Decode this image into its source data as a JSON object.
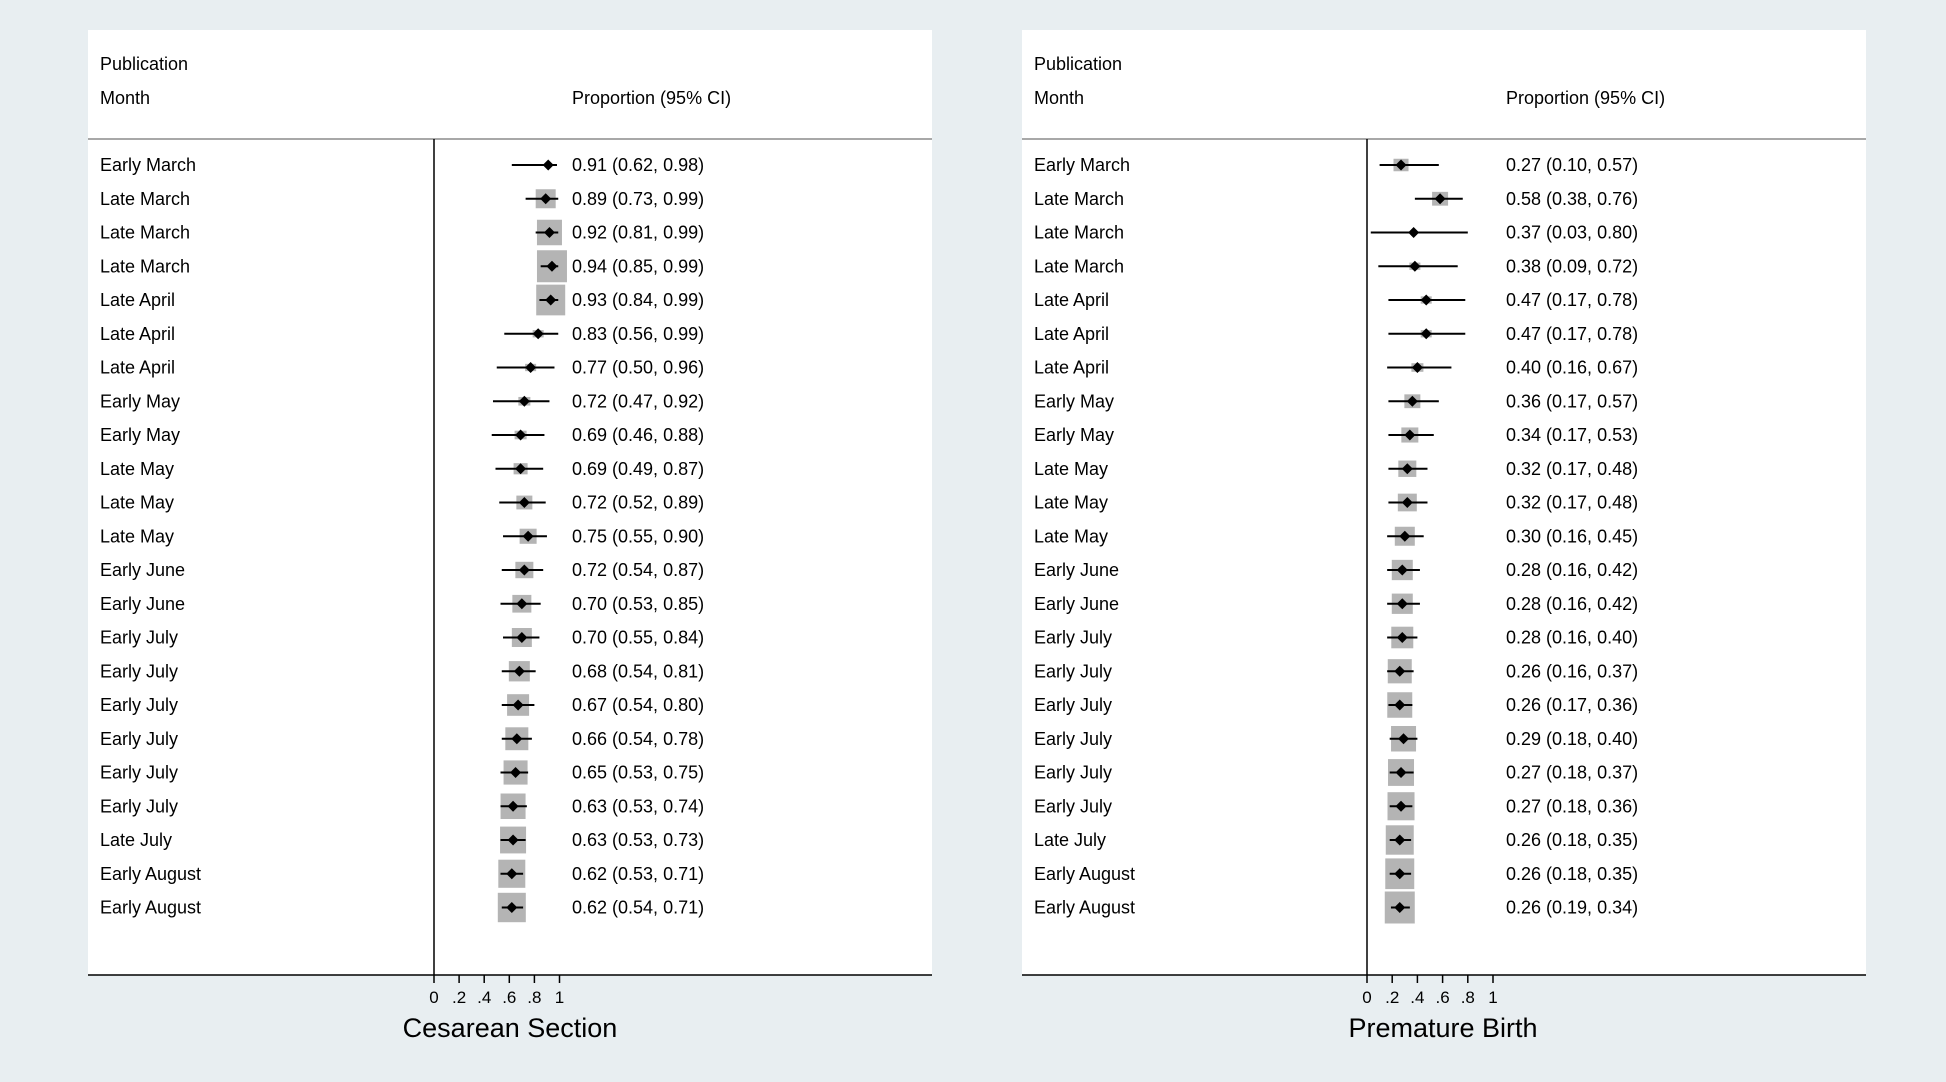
{
  "chart_data": [
    {
      "type": "forest",
      "header_label_line1": "Publication",
      "header_label_line2": "Month",
      "header_estimate": "Proportion (95% CI)",
      "xlabel": "Cesarean Section",
      "xlim": [
        0,
        1
      ],
      "xticks": [
        "0",
        ".2",
        ".4",
        ".6",
        ".8",
        "1"
      ],
      "tick_values": [
        0,
        0.2,
        0.4,
        0.6,
        0.8,
        1
      ],
      "rows": [
        {
          "label": "Early March",
          "est": 0.91,
          "lo": 0.62,
          "hi": 0.98,
          "text": "0.91 (0.62, 0.98)",
          "weight": 0.0
        },
        {
          "label": "Late March",
          "est": 0.89,
          "lo": 0.73,
          "hi": 0.99,
          "text": "0.89 (0.73, 0.99)",
          "weight": 0.5
        },
        {
          "label": "Late March",
          "est": 0.92,
          "lo": 0.81,
          "hi": 0.99,
          "text": "0.92 (0.81, 0.99)",
          "weight": 0.75
        },
        {
          "label": "Late March",
          "est": 0.94,
          "lo": 0.85,
          "hi": 0.99,
          "text": "0.94 (0.85, 0.99)",
          "weight": 1.0
        },
        {
          "label": "Late April",
          "est": 0.93,
          "lo": 0.84,
          "hi": 0.99,
          "text": "0.93 (0.84, 0.99)",
          "weight": 0.95
        },
        {
          "label": "Late April",
          "est": 0.83,
          "lo": 0.56,
          "hi": 0.99,
          "text": "0.83 (0.56, 0.99)",
          "weight": 0.05
        },
        {
          "label": "Late April",
          "est": 0.77,
          "lo": 0.5,
          "hi": 0.96,
          "text": "0.77 (0.50, 0.96)",
          "weight": 0.05
        },
        {
          "label": "Early May",
          "est": 0.72,
          "lo": 0.47,
          "hi": 0.92,
          "text": "0.72 (0.47, 0.92)",
          "weight": 0.1
        },
        {
          "label": "Early May",
          "est": 0.69,
          "lo": 0.46,
          "hi": 0.88,
          "text": "0.69 (0.46, 0.88)",
          "weight": 0.1
        },
        {
          "label": "Late May",
          "est": 0.69,
          "lo": 0.49,
          "hi": 0.87,
          "text": "0.69 (0.49, 0.87)",
          "weight": 0.2
        },
        {
          "label": "Late May",
          "est": 0.72,
          "lo": 0.52,
          "hi": 0.89,
          "text": "0.72 (0.52, 0.89)",
          "weight": 0.3
        },
        {
          "label": "Late May",
          "est": 0.75,
          "lo": 0.55,
          "hi": 0.9,
          "text": "0.75 (0.55, 0.90)",
          "weight": 0.35
        },
        {
          "label": "Early June",
          "est": 0.72,
          "lo": 0.54,
          "hi": 0.87,
          "text": "0.72 (0.54, 0.87)",
          "weight": 0.4
        },
        {
          "label": "Early June",
          "est": 0.7,
          "lo": 0.53,
          "hi": 0.85,
          "text": "0.70 (0.53, 0.85)",
          "weight": 0.45
        },
        {
          "label": "Early July",
          "est": 0.7,
          "lo": 0.55,
          "hi": 0.84,
          "text": "0.70 (0.55, 0.84)",
          "weight": 0.5
        },
        {
          "label": "Early July",
          "est": 0.68,
          "lo": 0.54,
          "hi": 0.81,
          "text": "0.68 (0.54, 0.81)",
          "weight": 0.55
        },
        {
          "label": "Early July",
          "est": 0.67,
          "lo": 0.54,
          "hi": 0.8,
          "text": "0.67 (0.54, 0.80)",
          "weight": 0.6
        },
        {
          "label": "Early July",
          "est": 0.66,
          "lo": 0.54,
          "hi": 0.78,
          "text": "0.66 (0.54, 0.78)",
          "weight": 0.65
        },
        {
          "label": "Early July",
          "est": 0.65,
          "lo": 0.53,
          "hi": 0.75,
          "text": "0.65 (0.53, 0.75)",
          "weight": 0.7
        },
        {
          "label": "Early July",
          "est": 0.63,
          "lo": 0.53,
          "hi": 0.74,
          "text": "0.63 (0.53, 0.74)",
          "weight": 0.75
        },
        {
          "label": "Late July",
          "est": 0.63,
          "lo": 0.53,
          "hi": 0.73,
          "text": "0.63 (0.53, 0.73)",
          "weight": 0.8
        },
        {
          "label": "Early August",
          "est": 0.62,
          "lo": 0.53,
          "hi": 0.71,
          "text": "0.62 (0.53, 0.71)",
          "weight": 0.85
        },
        {
          "label": "Early August",
          "est": 0.62,
          "lo": 0.54,
          "hi": 0.71,
          "text": "0.62 (0.54, 0.71)",
          "weight": 0.9
        }
      ]
    },
    {
      "type": "forest",
      "header_label_line1": "Publication",
      "header_label_line2": "Month",
      "header_estimate": "Proportion (95% CI)",
      "xlabel": "Premature Birth",
      "xlim": [
        0,
        1
      ],
      "xticks": [
        "0",
        ".2",
        ".4",
        ".6",
        ".8",
        "1"
      ],
      "tick_values": [
        0,
        0.2,
        0.4,
        0.6,
        0.8,
        1
      ],
      "rows": [
        {
          "label": "Early March",
          "est": 0.27,
          "lo": 0.1,
          "hi": 0.57,
          "text": "0.27 (0.10, 0.57)",
          "weight": 0.25
        },
        {
          "label": "Late March",
          "est": 0.58,
          "lo": 0.38,
          "hi": 0.76,
          "text": "0.58 (0.38, 0.76)",
          "weight": 0.3
        },
        {
          "label": "Late March",
          "est": 0.37,
          "lo": 0.03,
          "hi": 0.8,
          "text": "0.37 (0.03, 0.80)",
          "weight": 0.0
        },
        {
          "label": "Late March",
          "est": 0.38,
          "lo": 0.09,
          "hi": 0.72,
          "text": "0.38 (0.09, 0.72)",
          "weight": 0.05
        },
        {
          "label": "Late April",
          "est": 0.47,
          "lo": 0.17,
          "hi": 0.78,
          "text": "0.47 (0.17, 0.78)",
          "weight": 0.05
        },
        {
          "label": "Late April",
          "est": 0.47,
          "lo": 0.17,
          "hi": 0.78,
          "text": "0.47 (0.17, 0.78)",
          "weight": 0.05
        },
        {
          "label": "Late April",
          "est": 0.4,
          "lo": 0.16,
          "hi": 0.67,
          "text": "0.40 (0.16, 0.67)",
          "weight": 0.1
        },
        {
          "label": "Early May",
          "est": 0.36,
          "lo": 0.17,
          "hi": 0.57,
          "text": "0.36 (0.17, 0.57)",
          "weight": 0.3
        },
        {
          "label": "Early May",
          "est": 0.34,
          "lo": 0.17,
          "hi": 0.53,
          "text": "0.34 (0.17, 0.53)",
          "weight": 0.35
        },
        {
          "label": "Late May",
          "est": 0.32,
          "lo": 0.17,
          "hi": 0.48,
          "text": "0.32 (0.17, 0.48)",
          "weight": 0.4
        },
        {
          "label": "Late May",
          "est": 0.32,
          "lo": 0.17,
          "hi": 0.48,
          "text": "0.32 (0.17, 0.48)",
          "weight": 0.45
        },
        {
          "label": "Late May",
          "est": 0.3,
          "lo": 0.16,
          "hi": 0.45,
          "text": "0.30 (0.16, 0.45)",
          "weight": 0.5
        },
        {
          "label": "Early June",
          "est": 0.28,
          "lo": 0.16,
          "hi": 0.42,
          "text": "0.28 (0.16, 0.42)",
          "weight": 0.55
        },
        {
          "label": "Early June",
          "est": 0.28,
          "lo": 0.16,
          "hi": 0.42,
          "text": "0.28 (0.16, 0.42)",
          "weight": 0.55
        },
        {
          "label": "Early July",
          "est": 0.28,
          "lo": 0.16,
          "hi": 0.4,
          "text": "0.28 (0.16, 0.40)",
          "weight": 0.6
        },
        {
          "label": "Early July",
          "est": 0.26,
          "lo": 0.16,
          "hi": 0.37,
          "text": "0.26 (0.16, 0.37)",
          "weight": 0.7
        },
        {
          "label": "Early July",
          "est": 0.26,
          "lo": 0.17,
          "hi": 0.36,
          "text": "0.26 (0.17, 0.36)",
          "weight": 0.75
        },
        {
          "label": "Early July",
          "est": 0.29,
          "lo": 0.18,
          "hi": 0.4,
          "text": "0.29 (0.18, 0.40)",
          "weight": 0.75
        },
        {
          "label": "Early July",
          "est": 0.27,
          "lo": 0.18,
          "hi": 0.37,
          "text": "0.27 (0.18, 0.37)",
          "weight": 0.8
        },
        {
          "label": "Early July",
          "est": 0.27,
          "lo": 0.18,
          "hi": 0.36,
          "text": "0.27 (0.18, 0.36)",
          "weight": 0.85
        },
        {
          "label": "Late July",
          "est": 0.26,
          "lo": 0.18,
          "hi": 0.35,
          "text": "0.26 (0.18, 0.35)",
          "weight": 0.9
        },
        {
          "label": "Early August",
          "est": 0.26,
          "lo": 0.18,
          "hi": 0.35,
          "text": "0.26 (0.18, 0.35)",
          "weight": 0.95
        },
        {
          "label": "Early August",
          "est": 0.26,
          "lo": 0.19,
          "hi": 0.34,
          "text": "0.26 (0.19, 0.34)",
          "weight": 1.0
        }
      ]
    }
  ],
  "colors": {
    "background": "#e8eef1",
    "panel": "#ffffff",
    "weight_box": "#b4b4b4",
    "marker": "#000000",
    "rule": "#8c8c8c"
  }
}
